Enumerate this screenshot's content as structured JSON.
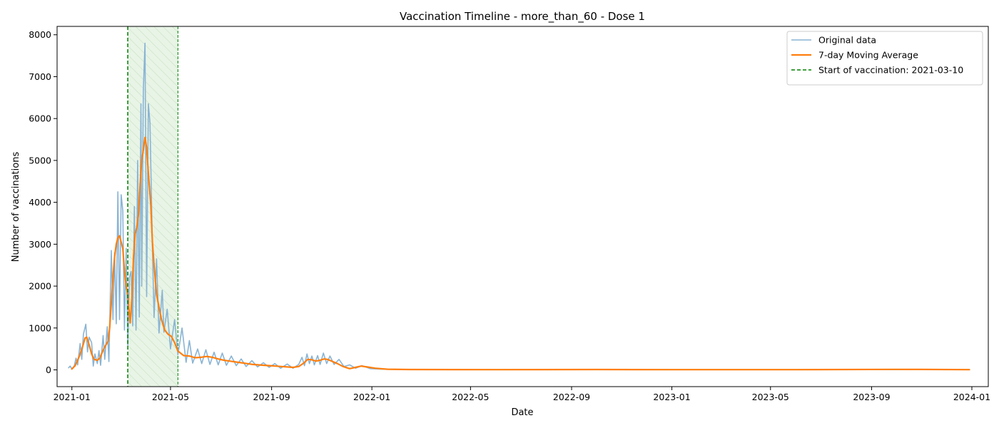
{
  "chart_data": {
    "type": "line",
    "title": "Vaccination Timeline - more_than_60 - Dose 1",
    "xlabel": "Date",
    "ylabel": "Number of vaccinations",
    "xlim": [
      "2020-12-14",
      "2024-01-21"
    ],
    "ylim": [
      -400,
      8200
    ],
    "x_ticks": [
      "2021-01-01",
      "2021-05-01",
      "2021-09-01",
      "2022-01-01",
      "2022-05-01",
      "2022-09-01",
      "2023-01-01",
      "2023-05-01",
      "2023-09-01",
      "2024-01-01"
    ],
    "x_tick_labels": [
      "2021-01",
      "2021-05",
      "2021-09",
      "2022-01",
      "2022-05",
      "2022-09",
      "2023-01",
      "2023-05",
      "2023-09",
      "2024-01"
    ],
    "y_ticks": [
      0,
      1000,
      2000,
      3000,
      4000,
      5000,
      6000,
      7000,
      8000
    ],
    "grid": false,
    "legend_position": "top-right",
    "vaccination_start": "2021-03-10",
    "shaded_span": [
      "2021-03-10",
      "2021-05-10"
    ],
    "shaded_color": "#e8f4e6",
    "series": [
      {
        "name": "Original data",
        "color": "#8ab4d4",
        "points": [
          [
            "2020-12-28",
            50
          ],
          [
            "2020-12-30",
            90
          ],
          [
            "2021-01-01",
            20
          ],
          [
            "2021-01-04",
            100
          ],
          [
            "2021-01-06",
            280
          ],
          [
            "2021-01-08",
            120
          ],
          [
            "2021-01-11",
            630
          ],
          [
            "2021-01-13",
            250
          ],
          [
            "2021-01-15",
            850
          ],
          [
            "2021-01-18",
            1090
          ],
          [
            "2021-01-20",
            430
          ],
          [
            "2021-01-22",
            780
          ],
          [
            "2021-01-25",
            650
          ],
          [
            "2021-01-27",
            90
          ],
          [
            "2021-01-29",
            380
          ],
          [
            "2021-02-01",
            150
          ],
          [
            "2021-02-03",
            460
          ],
          [
            "2021-02-05",
            110
          ],
          [
            "2021-02-08",
            820
          ],
          [
            "2021-02-10",
            250
          ],
          [
            "2021-02-13",
            1030
          ],
          [
            "2021-02-15",
            200
          ],
          [
            "2021-02-18",
            2850
          ],
          [
            "2021-02-20",
            1200
          ],
          [
            "2021-02-22",
            2800
          ],
          [
            "2021-02-24",
            1100
          ],
          [
            "2021-02-26",
            4250
          ],
          [
            "2021-02-28",
            1200
          ],
          [
            "2021-03-02",
            4180
          ],
          [
            "2021-03-04",
            3800
          ],
          [
            "2021-03-06",
            950
          ],
          [
            "2021-03-08",
            2900
          ],
          [
            "2021-03-10",
            580
          ],
          [
            "2021-03-12",
            2200
          ],
          [
            "2021-03-14",
            2350
          ],
          [
            "2021-03-16",
            1050
          ],
          [
            "2021-03-18",
            3900
          ],
          [
            "2021-03-20",
            950
          ],
          [
            "2021-03-22",
            5000
          ],
          [
            "2021-03-24",
            1260
          ],
          [
            "2021-03-26",
            6350
          ],
          [
            "2021-03-27",
            2000
          ],
          [
            "2021-03-29",
            6700
          ],
          [
            "2021-03-31",
            7800
          ],
          [
            "2021-04-02",
            1750
          ],
          [
            "2021-04-04",
            6350
          ],
          [
            "2021-04-06",
            5900
          ],
          [
            "2021-04-09",
            2900
          ],
          [
            "2021-04-11",
            1250
          ],
          [
            "2021-04-14",
            2650
          ],
          [
            "2021-04-17",
            880
          ],
          [
            "2021-04-21",
            1900
          ],
          [
            "2021-04-23",
            900
          ],
          [
            "2021-04-27",
            1450
          ],
          [
            "2021-05-01",
            500
          ],
          [
            "2021-05-06",
            1200
          ],
          [
            "2021-05-10",
            360
          ],
          [
            "2021-05-15",
            1000
          ],
          [
            "2021-05-20",
            180
          ],
          [
            "2021-05-24",
            700
          ],
          [
            "2021-05-28",
            160
          ],
          [
            "2021-06-03",
            500
          ],
          [
            "2021-06-08",
            150
          ],
          [
            "2021-06-13",
            480
          ],
          [
            "2021-06-18",
            130
          ],
          [
            "2021-06-23",
            420
          ],
          [
            "2021-06-28",
            120
          ],
          [
            "2021-07-03",
            400
          ],
          [
            "2021-07-08",
            110
          ],
          [
            "2021-07-14",
            330
          ],
          [
            "2021-07-20",
            100
          ],
          [
            "2021-07-26",
            260
          ],
          [
            "2021-08-01",
            80
          ],
          [
            "2021-08-08",
            220
          ],
          [
            "2021-08-15",
            70
          ],
          [
            "2021-08-22",
            170
          ],
          [
            "2021-08-29",
            60
          ],
          [
            "2021-09-05",
            150
          ],
          [
            "2021-09-12",
            40
          ],
          [
            "2021-09-20",
            140
          ],
          [
            "2021-09-27",
            40
          ],
          [
            "2021-10-04",
            130
          ],
          [
            "2021-10-08",
            300
          ],
          [
            "2021-10-11",
            100
          ],
          [
            "2021-10-14",
            380
          ],
          [
            "2021-10-17",
            150
          ],
          [
            "2021-10-20",
            330
          ],
          [
            "2021-10-23",
            120
          ],
          [
            "2021-10-27",
            340
          ],
          [
            "2021-10-30",
            130
          ],
          [
            "2021-11-03",
            400
          ],
          [
            "2021-11-07",
            150
          ],
          [
            "2021-11-11",
            330
          ],
          [
            "2021-11-16",
            130
          ],
          [
            "2021-11-22",
            250
          ],
          [
            "2021-11-28",
            80
          ],
          [
            "2021-12-05",
            120
          ],
          [
            "2021-12-12",
            40
          ],
          [
            "2021-12-20",
            100
          ],
          [
            "2021-12-30",
            30
          ],
          [
            "2022-01-15",
            15
          ],
          [
            "2022-02-15",
            5
          ],
          [
            "2023-12-29",
            5
          ]
        ]
      },
      {
        "name": "7-day Moving Average",
        "color": "#ff7f0e",
        "points": [
          [
            "2021-01-01",
            20
          ],
          [
            "2021-01-05",
            100
          ],
          [
            "2021-01-10",
            320
          ],
          [
            "2021-01-14",
            550
          ],
          [
            "2021-01-17",
            760
          ],
          [
            "2021-01-19",
            780
          ],
          [
            "2021-01-22",
            600
          ],
          [
            "2021-01-25",
            380
          ],
          [
            "2021-01-28",
            250
          ],
          [
            "2021-02-01",
            230
          ],
          [
            "2021-02-04",
            280
          ],
          [
            "2021-02-07",
            420
          ],
          [
            "2021-02-10",
            550
          ],
          [
            "2021-02-14",
            680
          ],
          [
            "2021-02-16",
            1000
          ],
          [
            "2021-02-18",
            1600
          ],
          [
            "2021-02-20",
            2200
          ],
          [
            "2021-02-22",
            2700
          ],
          [
            "2021-02-24",
            3000
          ],
          [
            "2021-02-26",
            3150
          ],
          [
            "2021-02-28",
            3200
          ],
          [
            "2021-03-02",
            3050
          ],
          [
            "2021-03-04",
            2900
          ],
          [
            "2021-03-06",
            2350
          ],
          [
            "2021-03-08",
            2000
          ],
          [
            "2021-03-10",
            1800
          ],
          [
            "2021-03-12",
            1300
          ],
          [
            "2021-03-13",
            1120
          ],
          [
            "2021-03-15",
            1700
          ],
          [
            "2021-03-17",
            2700
          ],
          [
            "2021-03-19",
            3250
          ],
          [
            "2021-03-21",
            3400
          ],
          [
            "2021-03-23",
            3700
          ],
          [
            "2021-03-25",
            4400
          ],
          [
            "2021-03-27",
            5000
          ],
          [
            "2021-03-29",
            5250
          ],
          [
            "2021-03-31",
            5550
          ],
          [
            "2021-04-02",
            5300
          ],
          [
            "2021-04-04",
            4700
          ],
          [
            "2021-04-07",
            3950
          ],
          [
            "2021-04-09",
            3050
          ],
          [
            "2021-04-11",
            2500
          ],
          [
            "2021-04-14",
            1800
          ],
          [
            "2021-04-17",
            1500
          ],
          [
            "2021-04-20",
            1200
          ],
          [
            "2021-04-24",
            950
          ],
          [
            "2021-04-28",
            850
          ],
          [
            "2021-05-02",
            800
          ],
          [
            "2021-05-06",
            650
          ],
          [
            "2021-05-10",
            450
          ],
          [
            "2021-05-17",
            340
          ],
          [
            "2021-05-24",
            330
          ],
          [
            "2021-05-31",
            290
          ],
          [
            "2021-06-07",
            300
          ],
          [
            "2021-06-14",
            320
          ],
          [
            "2021-06-21",
            300
          ],
          [
            "2021-06-28",
            260
          ],
          [
            "2021-07-05",
            230
          ],
          [
            "2021-07-12",
            210
          ],
          [
            "2021-07-19",
            190
          ],
          [
            "2021-07-26",
            170
          ],
          [
            "2021-08-02",
            150
          ],
          [
            "2021-08-09",
            130
          ],
          [
            "2021-08-16",
            120
          ],
          [
            "2021-08-23",
            110
          ],
          [
            "2021-08-30",
            100
          ],
          [
            "2021-09-06",
            90
          ],
          [
            "2021-09-13",
            80
          ],
          [
            "2021-09-20",
            70
          ],
          [
            "2021-09-27",
            60
          ],
          [
            "2021-10-04",
            80
          ],
          [
            "2021-10-10",
            160
          ],
          [
            "2021-10-15",
            250
          ],
          [
            "2021-10-20",
            240
          ],
          [
            "2021-10-25",
            210
          ],
          [
            "2021-10-30",
            230
          ],
          [
            "2021-11-04",
            260
          ],
          [
            "2021-11-08",
            250
          ],
          [
            "2021-11-14",
            200
          ],
          [
            "2021-11-20",
            150
          ],
          [
            "2021-11-27",
            80
          ],
          [
            "2021-12-05",
            30
          ],
          [
            "2021-12-12",
            60
          ],
          [
            "2021-12-19",
            90
          ],
          [
            "2021-12-26",
            70
          ],
          [
            "2022-01-05",
            40
          ],
          [
            "2022-01-20",
            15
          ],
          [
            "2022-02-15",
            8
          ],
          [
            "2022-06-01",
            5
          ],
          [
            "2022-10-01",
            8
          ],
          [
            "2023-01-01",
            5
          ],
          [
            "2023-06-01",
            5
          ],
          [
            "2023-10-01",
            12
          ],
          [
            "2023-11-01",
            10
          ],
          [
            "2023-12-29",
            5
          ]
        ]
      }
    ]
  },
  "legend": {
    "items": [
      {
        "label": "Original data",
        "color": "#8ab4d4",
        "style": "solid"
      },
      {
        "label": "7-day Moving Average",
        "color": "#ff7f0e",
        "style": "solid"
      },
      {
        "label": "Start of vaccination: 2021-03-10",
        "color": "#008000",
        "style": "dashed"
      }
    ]
  }
}
